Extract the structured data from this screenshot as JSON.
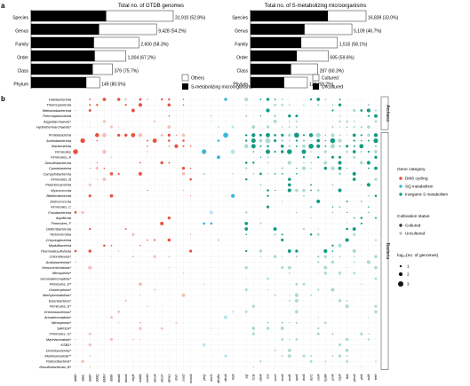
{
  "panel_a_label": "a",
  "panel_b_label": "b",
  "chart_data": [
    {
      "type": "bar",
      "title": "Total no. of GTDB genomes",
      "categories": [
        "Species",
        "Genus",
        "Family",
        "Order",
        "Class",
        "Phylum"
      ],
      "series": [
        {
          "name": "Others",
          "values": [
            31910,
            9428,
            2600,
            1004,
            379,
            149
          ]
        },
        {
          "name": "S-metabolizing microorganisms",
          "values": [
            16849,
            5111,
            1516,
            675,
            287,
            120
          ]
        }
      ],
      "value_labels": [
        "31,910 (52.8%)",
        "9,428 (54.2%)",
        "2,600 (58.3%)",
        "1,004 (67.2%)",
        "379 (75.7%)",
        "149 (80.5%)"
      ],
      "legend": [
        "Others",
        "S-metabolizing microorganisms"
      ]
    },
    {
      "type": "bar",
      "title": "Total no. of S-metabolizing microorganisms",
      "categories": [
        "Species",
        "Genus",
        "Family",
        "Order",
        "Class",
        "Phylum"
      ],
      "series": [
        {
          "name": "Cultured",
          "values": [
            16839,
            5109,
            1515,
            695,
            287,
            120
          ]
        },
        {
          "name": "Uncultured",
          "values": [
            11283,
            2723,
            884,
            414,
            173,
            71
          ]
        }
      ],
      "value_labels": [
        "16,839 (33.0%)",
        "5,109 (46.7%)",
        "1,515 (58.1%)",
        "695 (59.6%)",
        "287 (60.3%)",
        "120 (59.2%)"
      ],
      "legend": [
        "Cultured",
        "Uncultured"
      ]
    },
    {
      "type": "scatter",
      "genes": {
        "dms": [
          "dddD",
          "dddL",
          "dddP",
          "dddQ",
          "dddW",
          "dddK",
          "dmdA",
          "dmoA",
          "dsyB",
          "mddA",
          "mmtN",
          "dmsA",
          "dmsP",
          "alma1",
          "tmm",
          "ssuD",
          "msmA"
        ],
        "sq": [
          "yihQ",
          "dsvD",
          "dhsBa",
          "dhsA",
          "hbA"
        ],
        "inorganic": [
          "sqr",
          "fccB",
          "sdoA",
          "sox",
          "soxX",
          "soxA",
          "soxB",
          "aprA",
          "dsrA",
          "dsrC",
          "sreA",
          "hydA",
          "psrA",
          "nrpA",
          "ttrA",
          "phsA",
          "phA",
          "sulA",
          "tetH"
        ]
      },
      "archaea": [
        "Halobacteriota",
        "Thermoproteota",
        "Methanobacteriota",
        "Thermoplasmatota",
        "Asgardarchaeota*",
        "Hydrothermarchaeota*"
      ],
      "bacteria": [
        "Proteobacteria",
        "Actinobacteriota",
        "Bacteroidota",
        "Firmicutes",
        "Firmicutes_A",
        "Desulfobacterota",
        "Cyanobacteria",
        "Campylobacterota",
        "Firmicutes_B",
        "Planctomycetota",
        "Myxococcota",
        "Bdellovibrionota",
        "Deinococcota",
        "Firmicutes_C",
        "Fusobacteriota",
        "Aquificota",
        "Firmicutes_F",
        "Deferribacterota",
        "Tectomicrobia",
        "Chrysiogenetota",
        "Modulibacteria",
        "Thermodesulfobiota",
        "Chloroflexota*",
        "Acidobacteriota*",
        "Verrucomicrobiota*",
        "Nitrospirota*",
        "Gemmatimonadota*",
        "Firmicutes_D*",
        "Omnitrophota*",
        "Methylomirabilota*",
        "Eisenbacteria*",
        "Firmicutes_E*",
        "Eremiobacterota*",
        "Armatimonadota*",
        "Nitrospinota*",
        "SAR324*",
        "Firmicutes_G*",
        "Marinisomatota*",
        "KSB1*",
        "Dormibacterota*",
        "Marinisomatota**",
        "Patescibacteria*",
        "Desulfobacterota_B*"
      ],
      "archaea_label": "Archaea",
      "bacteria_label": "Bacteria"
    }
  ],
  "legend_gene": {
    "title": "Gene category",
    "items": [
      {
        "label": "DMS cycling",
        "color": "#e8513f"
      },
      {
        "label": "SQ metabolism",
        "color": "#3bb6d6"
      },
      {
        "label": "Inorganic S metabolism",
        "color": "#139b82"
      }
    ]
  },
  "legend_cult": {
    "title": "Cultivation status",
    "items": [
      {
        "label": "Cultured"
      },
      {
        "label": "Uncultured"
      }
    ]
  },
  "legend_size": {
    "title": "log₁₀(no. of genomes)",
    "items": [
      {
        "label": "1"
      },
      {
        "label": "2"
      },
      {
        "label": "3"
      }
    ]
  }
}
